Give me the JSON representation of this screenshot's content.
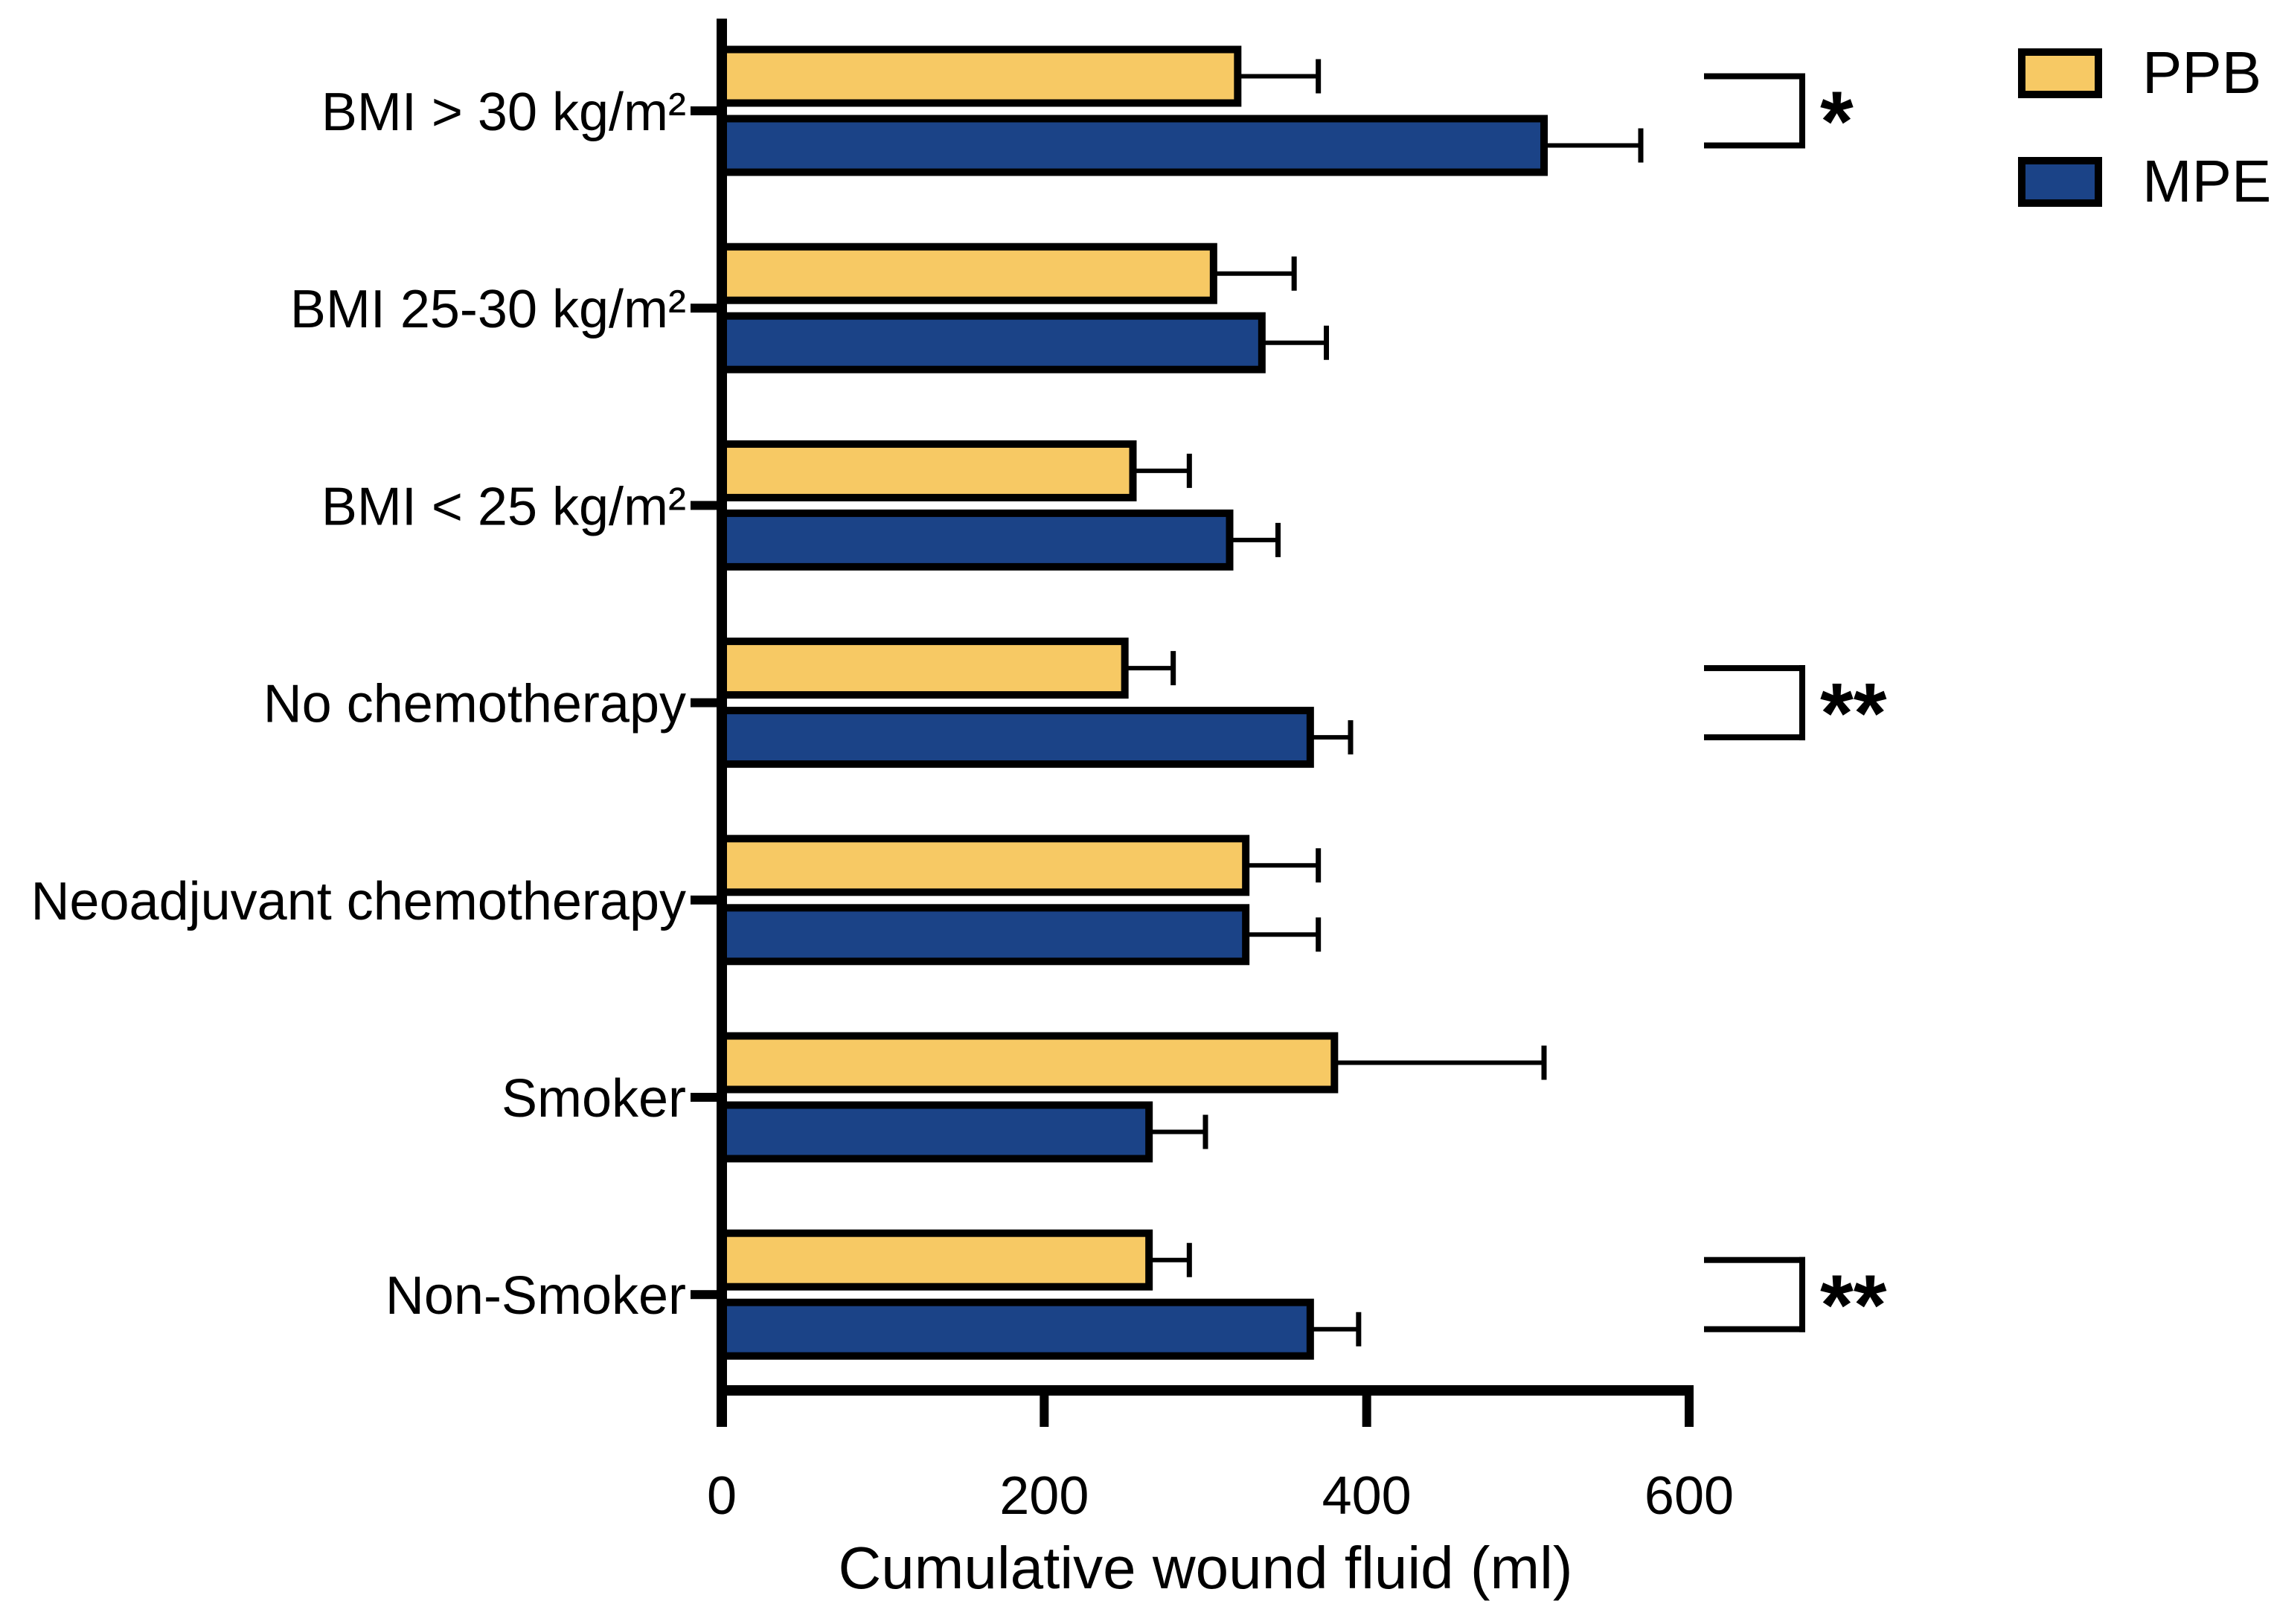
{
  "figure": {
    "background": "#ffffff",
    "axis_color": "#000000"
  },
  "chart_data": {
    "type": "bar",
    "orientation": "horizontal",
    "title": "",
    "xlabel": "Cumulative wound fluid (ml)",
    "ylabel": "",
    "xlim": [
      0,
      600
    ],
    "x_ticks": [
      0,
      200,
      400,
      600
    ],
    "grid": false,
    "legend_position": "top-right",
    "error_bars": "upper-only",
    "categories": [
      "BMI > 30 kg/m²",
      "BMI 25-30 kg/m²",
      "BMI < 25 kg/m²",
      "No chemotherapy",
      "Neoadjuvant chemotherapy",
      "Smoker",
      "Non-Smoker"
    ],
    "series": [
      {
        "name": "PPB",
        "color": "#F7C964",
        "values": [
          320,
          305,
          255,
          250,
          325,
          380,
          265
        ],
        "error_upper": [
          370,
          355,
          290,
          280,
          370,
          510,
          290
        ]
      },
      {
        "name": "MPE",
        "color": "#1B4387",
        "values": [
          510,
          335,
          315,
          365,
          325,
          265,
          365
        ],
        "error_upper": [
          570,
          375,
          345,
          390,
          370,
          300,
          395
        ]
      }
    ],
    "significance": [
      {
        "category_index": 0,
        "between": [
          "PPB",
          "MPE"
        ],
        "label": "*"
      },
      {
        "category_index": 3,
        "between": [
          "PPB",
          "MPE"
        ],
        "label": "**"
      },
      {
        "category_index": 6,
        "between": [
          "PPB",
          "MPE"
        ],
        "label": "**"
      }
    ]
  }
}
